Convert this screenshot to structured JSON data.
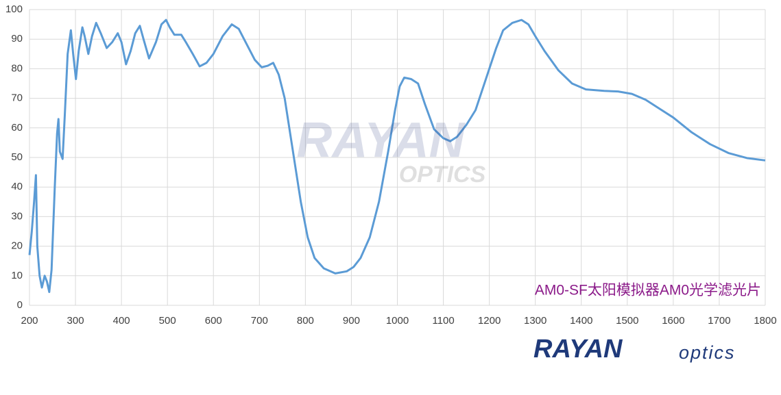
{
  "chart_data": {
    "type": "line",
    "annotation": "AM0-SF太阳模拟器AM0光学滤光片",
    "x": [
      200,
      205,
      210,
      214,
      217,
      222,
      227,
      233,
      238,
      243,
      248,
      255,
      260,
      263,
      266,
      272,
      277,
      283,
      290,
      295,
      301,
      307,
      315,
      320,
      328,
      336,
      345,
      355,
      368,
      380,
      392,
      400,
      410,
      420,
      430,
      440,
      448,
      460,
      475,
      487,
      497,
      505,
      515,
      530,
      540,
      555,
      570,
      585,
      600,
      620,
      640,
      655,
      670,
      690,
      705,
      718,
      730,
      742,
      755,
      770,
      790,
      805,
      820,
      840,
      865,
      890,
      905,
      920,
      940,
      960,
      980,
      995,
      1005,
      1015,
      1030,
      1045,
      1060,
      1080,
      1100,
      1115,
      1130,
      1150,
      1170,
      1185,
      1200,
      1215,
      1230,
      1250,
      1270,
      1285,
      1300,
      1320,
      1350,
      1380,
      1410,
      1450,
      1480,
      1510,
      1540,
      1570,
      1600,
      1640,
      1680,
      1720,
      1760,
      1800
    ],
    "series": [
      {
        "color": "#5b9bd5",
        "values": [
          17,
          25,
          35,
          44,
          20,
          10,
          6,
          10,
          8,
          4.5,
          12,
          40,
          58,
          63,
          52,
          49.5,
          65,
          85,
          93,
          85,
          76.5,
          86,
          94,
          91,
          85,
          91,
          95.5,
          92,
          87,
          89,
          92,
          89,
          81.5,
          86,
          92,
          94.5,
          90,
          83.5,
          89,
          95,
          96.5,
          94,
          91.5,
          91.5,
          89,
          85,
          80.8,
          82,
          85,
          91,
          95,
          93.5,
          89,
          83,
          80.5,
          81,
          82,
          78,
          70,
          55,
          35,
          23,
          16,
          12.5,
          10.8,
          11.5,
          13,
          16,
          23,
          35,
          52,
          66,
          74,
          77,
          76.5,
          75,
          68,
          59.5,
          56.5,
          55.5,
          57,
          61,
          66,
          73,
          80,
          87,
          93,
          95.5,
          96.5,
          95,
          91,
          86,
          79.5,
          75,
          73,
          72.5,
          72.3,
          71.5,
          69.5,
          66.5,
          63.5,
          58.5,
          54.5,
          51.5,
          49.8,
          49
        ]
      }
    ],
    "xlim": [
      200,
      1800
    ],
    "ylim": [
      0,
      100
    ],
    "xticks": [
      200,
      300,
      400,
      500,
      600,
      700,
      800,
      900,
      1000,
      1100,
      1200,
      1300,
      1400,
      1500,
      1600,
      1700,
      1800
    ],
    "yticks": [
      0,
      10,
      20,
      30,
      40,
      50,
      60,
      70,
      80,
      90,
      100
    ],
    "grid": true
  },
  "watermark": [
    "RAYAN",
    "OPTICS"
  ],
  "logo": [
    "RAYAN",
    "optics"
  ]
}
